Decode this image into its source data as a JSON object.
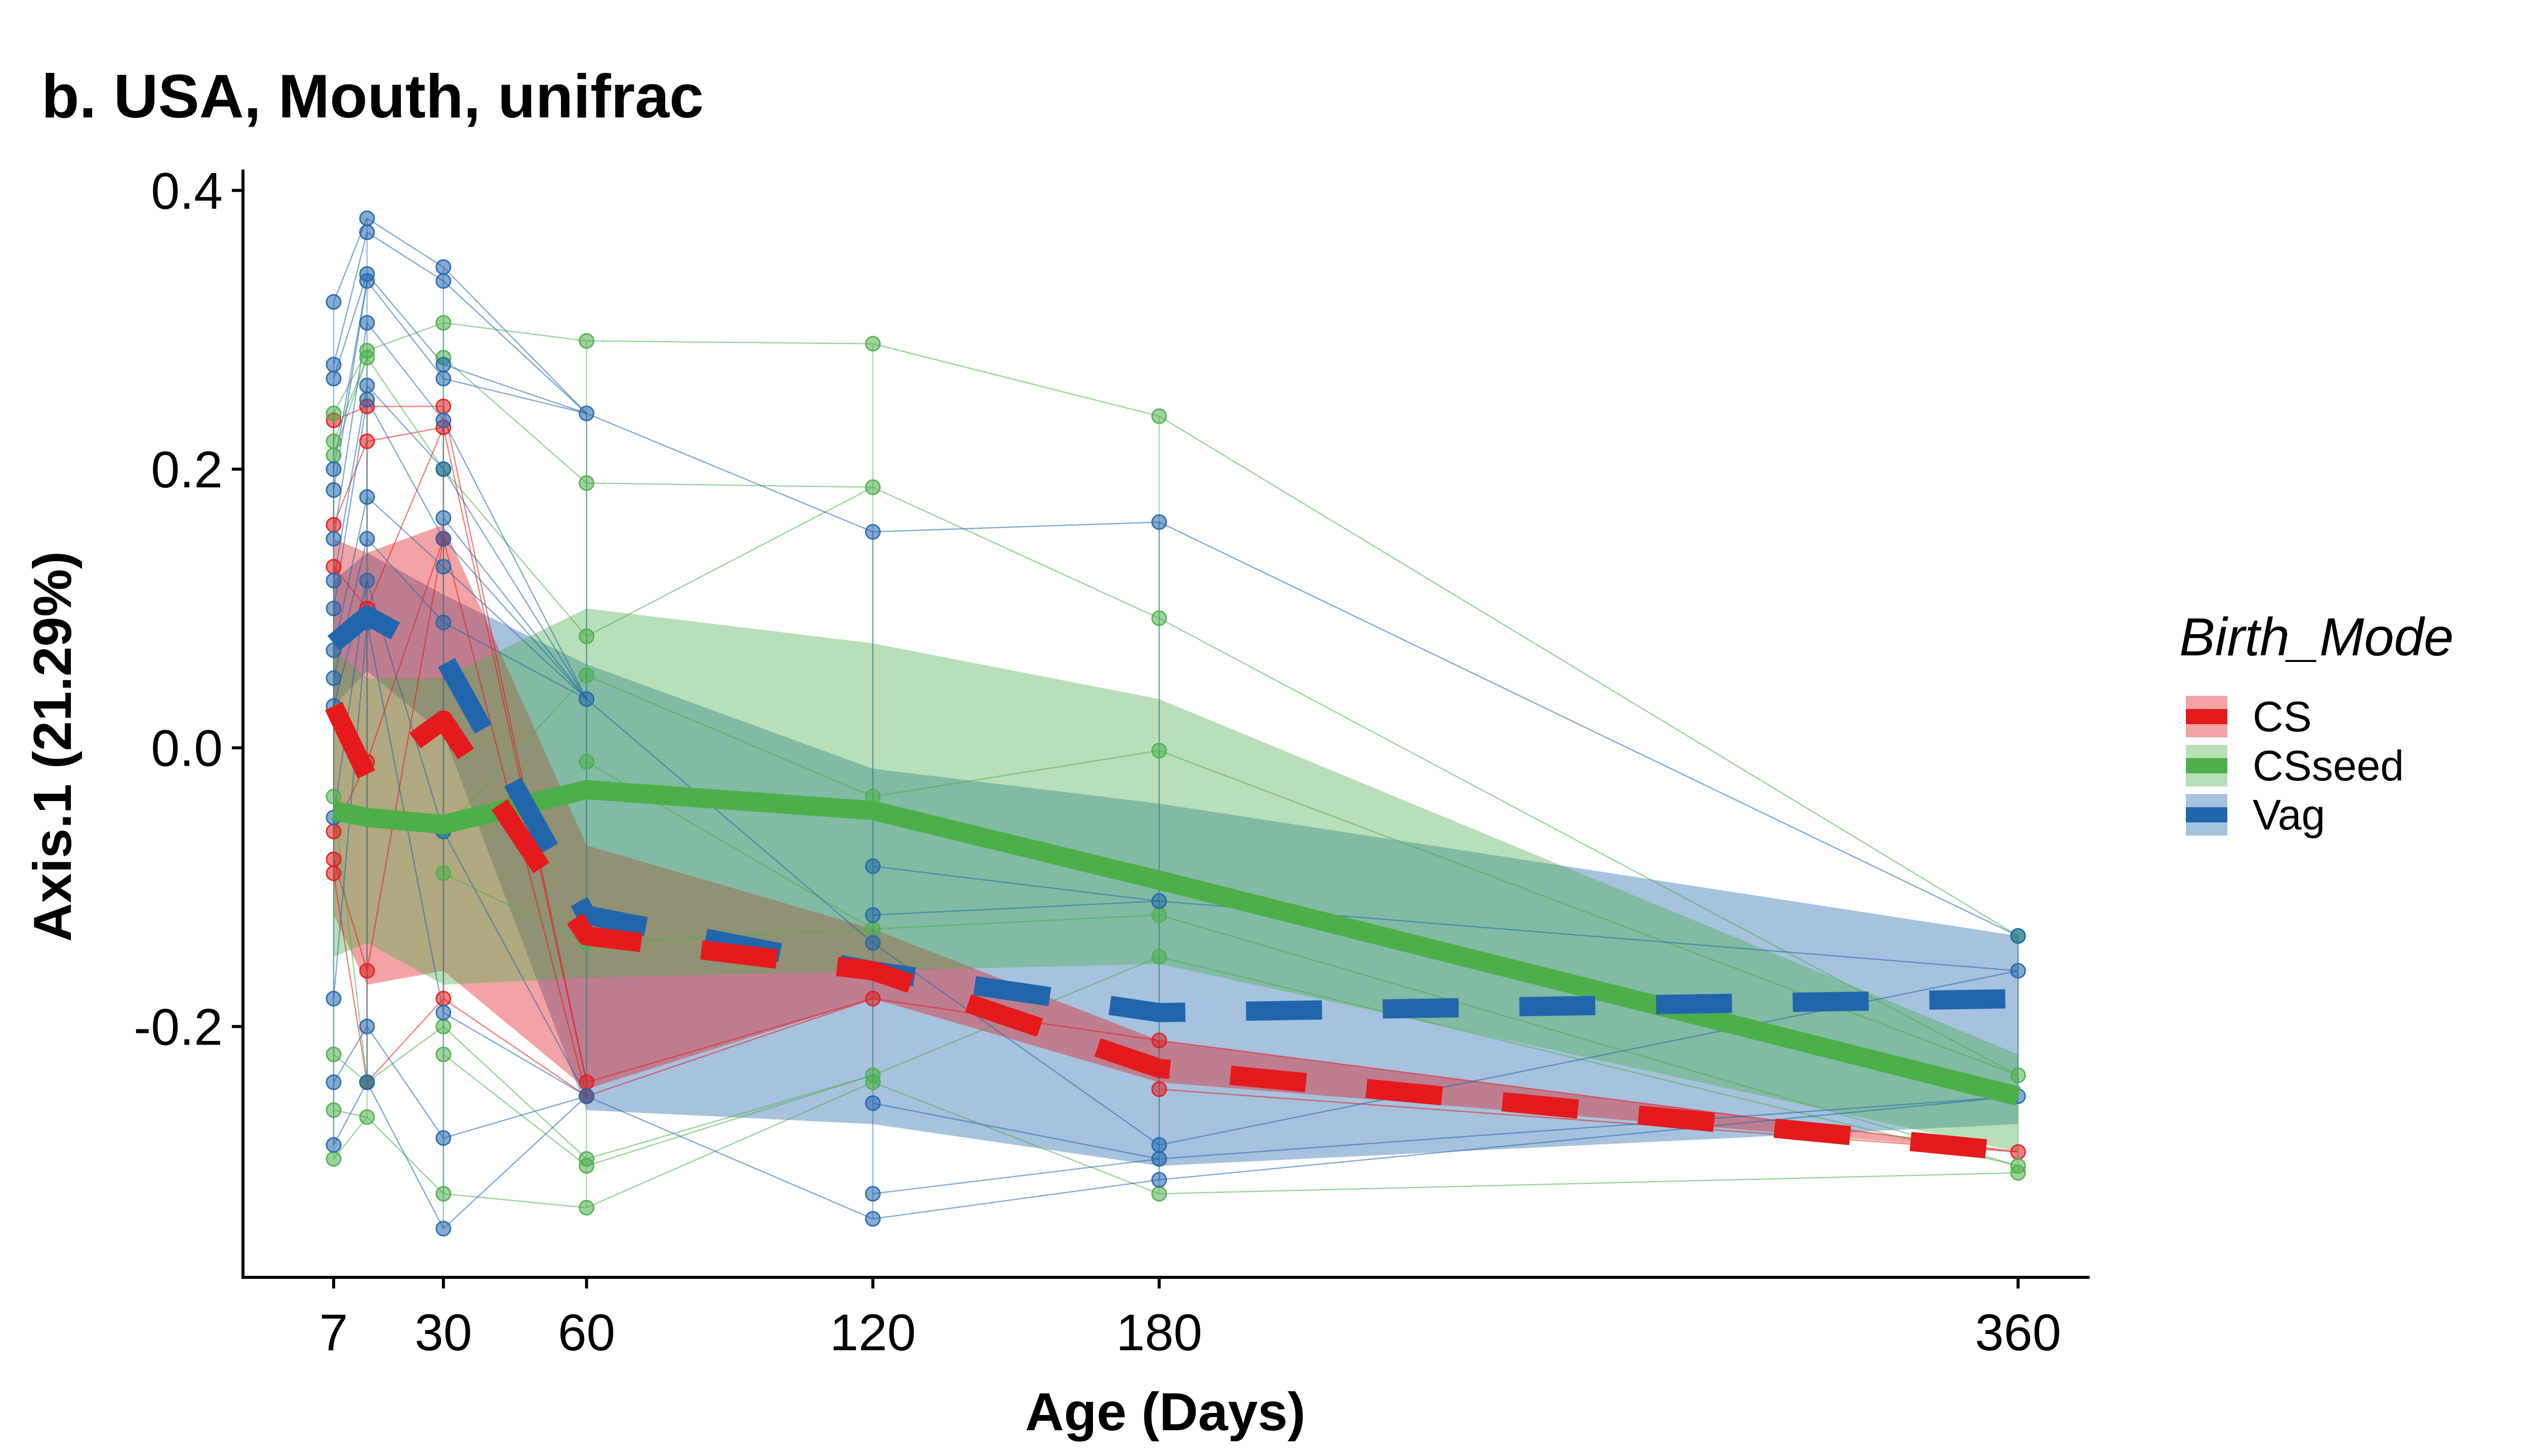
{
  "chart_data": {
    "type": "line",
    "title": "b. USA, Mouth, unifrac",
    "xlabel": "Age (Days)",
    "ylabel": "Axis.1 (21.29%)",
    "xlim": [
      -12,
      375
    ],
    "ylim": [
      -0.38,
      0.415
    ],
    "x_ticks": [
      7,
      30,
      60,
      120,
      180,
      360
    ],
    "x_tick_labels": [
      "7",
      "30",
      "60",
      "120",
      "180",
      "360"
    ],
    "y_ticks": [
      -0.2,
      0.0,
      0.2,
      0.4
    ],
    "y_tick_labels": [
      "-0.2",
      "0.0",
      "0.2",
      "0.4"
    ],
    "grid": false,
    "legend": {
      "title": "Birth_Mode",
      "position": "right",
      "entries": [
        "CS",
        "CSseed",
        "Vag"
      ]
    },
    "series": [
      {
        "name": "CS",
        "color": "#e41a1c",
        "line_style": "dashed",
        "x": [
          7,
          14,
          30,
          60,
          120,
          180,
          360
        ],
        "mean": [
          0.03,
          -0.02,
          0.02,
          -0.135,
          -0.16,
          -0.23,
          -0.29
        ],
        "ribbon_low": [
          -0.12,
          -0.17,
          -0.16,
          -0.245,
          -0.18,
          -0.24,
          -0.29
        ],
        "ribbon_high": [
          0.15,
          0.14,
          0.16,
          -0.07,
          -0.13,
          -0.21,
          -0.29
        ],
        "points": [
          [
            7,
            0.235
          ],
          [
            7,
            0.16
          ],
          [
            7,
            0.13
          ],
          [
            7,
            -0.06
          ],
          [
            7,
            -0.08
          ],
          [
            7,
            -0.09
          ],
          [
            14,
            0.245
          ],
          [
            14,
            0.22
          ],
          [
            14,
            0.1
          ],
          [
            14,
            -0.01
          ],
          [
            14,
            -0.16
          ],
          [
            14,
            -0.24
          ],
          [
            30,
            0.245
          ],
          [
            30,
            0.23
          ],
          [
            30,
            0.15
          ],
          [
            30,
            -0.18
          ],
          [
            60,
            -0.24
          ],
          [
            60,
            -0.25
          ],
          [
            120,
            -0.18
          ],
          [
            180,
            -0.21
          ],
          [
            180,
            -0.245
          ],
          [
            360,
            -0.29
          ]
        ]
      },
      {
        "name": "CSseed",
        "color": "#4daf4a",
        "line_style": "solid",
        "x": [
          7,
          14,
          30,
          60,
          120,
          180,
          360
        ],
        "mean": [
          -0.045,
          -0.05,
          -0.055,
          -0.03,
          -0.045,
          -0.095,
          -0.25
        ],
        "ribbon_low": [
          -0.15,
          -0.14,
          -0.17,
          -0.165,
          -0.16,
          -0.155,
          -0.29
        ],
        "ribbon_high": [
          0.07,
          0.05,
          0.05,
          0.1,
          0.075,
          0.035,
          -0.22
        ],
        "points": [
          [
            7,
            0.24
          ],
          [
            7,
            0.22
          ],
          [
            7,
            0.21
          ],
          [
            7,
            -0.035
          ],
          [
            7,
            -0.22
          ],
          [
            7,
            -0.26
          ],
          [
            7,
            -0.295
          ],
          [
            14,
            0.285
          ],
          [
            14,
            0.28
          ],
          [
            14,
            -0.24
          ],
          [
            14,
            -0.265
          ],
          [
            30,
            0.305
          ],
          [
            30,
            0.28
          ],
          [
            30,
            0.2
          ],
          [
            30,
            -0.06
          ],
          [
            30,
            -0.09
          ],
          [
            30,
            -0.2
          ],
          [
            30,
            -0.22
          ],
          [
            30,
            -0.32
          ],
          [
            60,
            0.292
          ],
          [
            60,
            0.19
          ],
          [
            60,
            0.08
          ],
          [
            60,
            0.052
          ],
          [
            60,
            -0.01
          ],
          [
            60,
            -0.14
          ],
          [
            60,
            -0.295
          ],
          [
            60,
            -0.3
          ],
          [
            60,
            -0.33
          ],
          [
            120,
            0.29
          ],
          [
            120,
            0.187
          ],
          [
            120,
            -0.035
          ],
          [
            120,
            -0.13
          ],
          [
            120,
            -0.235
          ],
          [
            120,
            -0.24
          ],
          [
            180,
            0.238
          ],
          [
            180,
            0.093
          ],
          [
            180,
            -0.002
          ],
          [
            180,
            -0.12
          ],
          [
            180,
            -0.15
          ],
          [
            180,
            -0.32
          ],
          [
            360,
            -0.135
          ],
          [
            360,
            -0.235
          ],
          [
            360,
            -0.3
          ],
          [
            360,
            -0.305
          ]
        ]
      },
      {
        "name": "Vag",
        "color": "#2166ac",
        "line_style": "dashed",
        "x": [
          7,
          14,
          30,
          60,
          120,
          180,
          360
        ],
        "mean": [
          0.075,
          0.095,
          0.065,
          -0.12,
          -0.16,
          -0.19,
          -0.18
        ],
        "ribbon_low": [
          0.03,
          0.055,
          0.01,
          -0.26,
          -0.27,
          -0.3,
          -0.27
        ],
        "ribbon_high": [
          0.12,
          0.14,
          0.11,
          0.06,
          -0.015,
          -0.04,
          -0.135
        ],
        "points": [
          [
            7,
            0.32
          ],
          [
            7,
            0.275
          ],
          [
            7,
            0.265
          ],
          [
            7,
            0.2
          ],
          [
            7,
            0.185
          ],
          [
            7,
            0.15
          ],
          [
            7,
            0.12
          ],
          [
            7,
            0.1
          ],
          [
            7,
            0.07
          ],
          [
            7,
            0.05
          ],
          [
            7,
            0.03
          ],
          [
            7,
            -0.05
          ],
          [
            7,
            -0.18
          ],
          [
            7,
            -0.24
          ],
          [
            7,
            -0.285
          ],
          [
            14,
            0.38
          ],
          [
            14,
            0.37
          ],
          [
            14,
            0.34
          ],
          [
            14,
            0.335
          ],
          [
            14,
            0.305
          ],
          [
            14,
            0.26
          ],
          [
            14,
            0.25
          ],
          [
            14,
            0.18
          ],
          [
            14,
            0.15
          ],
          [
            14,
            0.12
          ],
          [
            14,
            0.09
          ],
          [
            14,
            -0.2
          ],
          [
            14,
            -0.24
          ],
          [
            30,
            0.345
          ],
          [
            30,
            0.335
          ],
          [
            30,
            0.275
          ],
          [
            30,
            0.265
          ],
          [
            30,
            0.235
          ],
          [
            30,
            0.2
          ],
          [
            30,
            0.165
          ],
          [
            30,
            0.15
          ],
          [
            30,
            0.13
          ],
          [
            30,
            0.09
          ],
          [
            30,
            -0.06
          ],
          [
            30,
            -0.19
          ],
          [
            30,
            -0.28
          ],
          [
            30,
            -0.345
          ],
          [
            60,
            0.24
          ],
          [
            60,
            0.035
          ],
          [
            60,
            -0.25
          ],
          [
            120,
            0.155
          ],
          [
            120,
            -0.085
          ],
          [
            120,
            -0.12
          ],
          [
            120,
            -0.14
          ],
          [
            120,
            -0.255
          ],
          [
            120,
            -0.32
          ],
          [
            120,
            -0.338
          ],
          [
            180,
            0.162
          ],
          [
            180,
            -0.11
          ],
          [
            180,
            -0.285
          ],
          [
            180,
            -0.295
          ],
          [
            180,
            -0.31
          ],
          [
            360,
            -0.135
          ],
          [
            360,
            -0.16
          ],
          [
            360,
            -0.25
          ]
        ]
      }
    ]
  }
}
